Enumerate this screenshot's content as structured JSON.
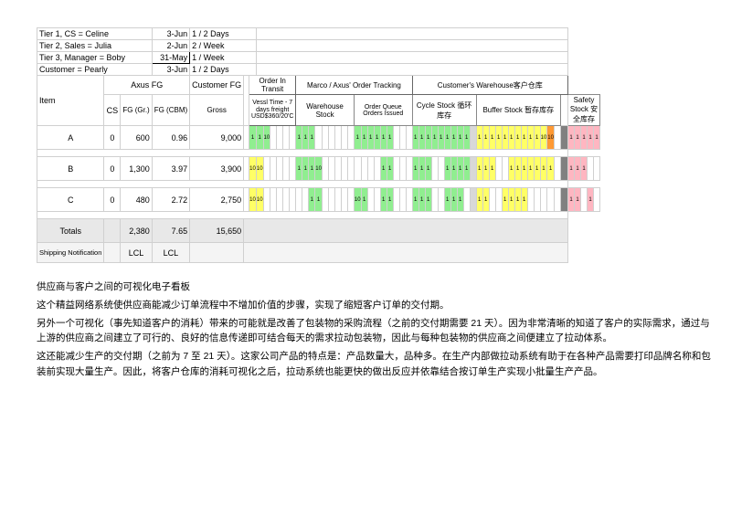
{
  "tiers": [
    {
      "label": "Tier 1, CS = Celine",
      "date": "3-Jun",
      "freq": "1 / 2 Days"
    },
    {
      "label": "Tier 2, Sales = Julia",
      "date": "2-Jun",
      "freq": "2 / Week"
    },
    {
      "label": "Tier 3, Manager = Boby",
      "date": "31-May",
      "freq": "1 / Week",
      "hi": true
    },
    {
      "label": "Customer = Pearly",
      "date": "3-Jun",
      "freq": "1 / 2 Days"
    }
  ],
  "group_headers": {
    "axus_fg": "Axus FG",
    "cust_fg": "Customer FG",
    "order_transit": "Order In Transit",
    "marco": "Marco / Axus' Order Tracking",
    "customer_wh": "Customer's Warehouse客户仓库"
  },
  "col_headers": {
    "item": "Item",
    "cs": "CS",
    "fg_gr": "FG (Gr.)",
    "fg_cbm": "FG (CBM)",
    "gross": "Gross",
    "vessel": "Vessl Time - 7 days freight USD$360/20'C",
    "wh_stock": "Warehouse Stock",
    "order_queue": "Order Queue Orders Issued",
    "cycle_stock": "Cycle Stock 循环库存",
    "buffer_stock": "Buffer Stock 暂存库存",
    "safety_stock": "Safety Stock 安全库存"
  },
  "rows": [
    {
      "item": "A",
      "cs": "0",
      "fg_gr": "600",
      "fg_cbm": "0.96",
      "gross": "9,000",
      "slots": [
        "g:1",
        "g:1",
        "g:10",
        "",
        "",
        "",
        "",
        "g:1",
        "g:1",
        "g:1",
        "",
        "",
        "",
        "",
        "",
        "",
        "g:1",
        "g:1",
        "g:1",
        "g:1",
        "g:1",
        "g:1",
        "",
        "",
        "",
        "g:1",
        "g:1",
        "g:1",
        "g:1",
        "g:1",
        "g:1",
        "g:1",
        "g:1",
        "g:1",
        "lg:",
        "y:1",
        "y:1",
        "y:1",
        "y:1",
        "y:1",
        "y:1",
        "y:1",
        "y:1",
        "y:1",
        "y:1",
        "y:10",
        "o:10",
        "",
        "dg:",
        "p:1",
        "p:1",
        "p:1",
        "p:1",
        "p:1"
      ]
    },
    {
      "item": "B",
      "cs": "0",
      "fg_gr": "1,300",
      "fg_cbm": "3.97",
      "gross": "3,900",
      "slots": [
        "y:10",
        "y:10",
        "",
        "",
        "",
        "",
        "",
        "g:1",
        "g:1",
        "g:1",
        "g:10",
        "",
        "",
        "",
        "",
        "",
        "",
        "",
        "",
        "",
        "g:1",
        "g:1",
        "",
        "",
        "",
        "g:1",
        "g:1",
        "g:1",
        "",
        "",
        "g:1",
        "g:1",
        "g:1",
        "g:1",
        "lg:",
        "y:1",
        "y:1",
        "y:1",
        "",
        "",
        "y:1",
        "y:1",
        "y:1",
        "y:1",
        "y:1",
        "y:1",
        "y:1",
        "",
        "dg:",
        "p:1",
        "p:1",
        "p:1",
        "",
        ""
      ]
    },
    {
      "item": "C",
      "cs": "0",
      "fg_gr": "480",
      "fg_cbm": "2.72",
      "gross": "2,750",
      "slots": [
        "y:10",
        "y:10",
        "",
        "",
        "",
        "",
        "",
        "",
        "",
        "g:1",
        "g:1",
        "",
        "",
        "",
        "",
        "",
        "g:10",
        "g:1",
        "",
        "",
        "g:1",
        "g:1",
        "",
        "",
        "",
        "g:1",
        "g:1",
        "g:1",
        "",
        "",
        "g:1",
        "g:1",
        "g:1",
        "",
        "lg:",
        "y:1",
        "y:1",
        "",
        "",
        "y:1",
        "y:1",
        "y:1",
        "y:1",
        "",
        "",
        "",
        "",
        "",
        "dg:",
        "p:1",
        "p:1",
        "",
        "p:1",
        ""
      ]
    }
  ],
  "totals": {
    "label": "Totals",
    "fg_gr": "2,380",
    "fg_cbm": "7.65",
    "gross": "15,650",
    "fg_cbm_hi": true
  },
  "shipping": {
    "label": "Shipping Notification",
    "v1": "LCL",
    "v2": "LCL"
  },
  "paragraphs": [
    "供应商与客户之间的可视化电子看板",
    "这个精益网络系统使供应商能减少订单流程中不增加价值的步骤，实现了缩短客户订单的交付期。",
    "另外一个可视化（事先知道客户的消耗）带来的可能就是改善了包装物的采购流程（之前的交付期需要 21 天）。因为非常清晰的知道了客户的实际需求，通过与上游的供应商之间建立了可行的、良好的信息传递即可结合每天的需求拉动包装物，因此与每种包装物的供应商之间便建立了拉动体系。",
    "这还能减少生产的交付期（之前为 7 至 21 天）。这家公司产品的特点是：产品数量大，品种多。在生产内部做拉动系统有助于在各种产品需要打印品牌名称和包装前实现大量生产。因此，将客户仓库的消耗可视化之后，拉动系统也能更快的做出反应并依靠结合按订单生产实现小批量生产产品。"
  ]
}
